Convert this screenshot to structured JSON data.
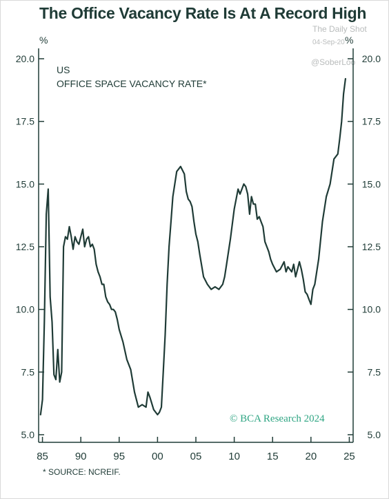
{
  "title": "The Office Vacancy Rate Is At A Record High",
  "watermark": {
    "line1": "The Daily Shot",
    "line2": "04-Sep-20",
    "line3": "@SoberLoo"
  },
  "unit_left": "%",
  "unit_right": "%",
  "subtitle_1": "US",
  "subtitle_2": "OFFICE SPACE VACANCY RATE*",
  "credit": "© BCA Research 2024",
  "source_note": "* SOURCE: NCREIF.",
  "colors": {
    "line": "#1f3b36",
    "text": "#1f3b36",
    "credit": "#2fa583",
    "watermark": "#b9bcbc"
  },
  "chart_data": {
    "type": "line",
    "title": "OFFICE SPACE VACANCY RATE*",
    "xlabel": "",
    "ylabel": "%",
    "xlim": [
      1984.5,
      2025.5
    ],
    "ylim": [
      5.0,
      20.0
    ],
    "grid": false,
    "legend": "none",
    "y_axes": "left and right",
    "x_ticks": [
      1985,
      1990,
      1995,
      2000,
      2005,
      2010,
      2015,
      2020,
      2025
    ],
    "x_tick_labels": [
      "85",
      "90",
      "95",
      "00",
      "05",
      "10",
      "15",
      "20",
      "25"
    ],
    "y_ticks": [
      5.0,
      7.5,
      10.0,
      12.5,
      15.0,
      17.5,
      20.0
    ],
    "y_tick_labels": [
      "5.0",
      "7.5",
      "10.0",
      "12.5",
      "15.0",
      "17.5",
      "20.0"
    ],
    "series": [
      {
        "x": [
          1984.75,
          1985.0,
          1985.25,
          1985.5,
          1985.75,
          1986.0,
          1986.25,
          1986.5,
          1986.75,
          1987.0,
          1987.25,
          1987.5,
          1987.75,
          1988.0,
          1988.25,
          1988.5,
          1988.75,
          1989.0,
          1989.25,
          1989.5,
          1989.75,
          1990.0,
          1990.25,
          1990.5,
          1990.75,
          1991.0,
          1991.25,
          1991.5,
          1991.75,
          1992.0,
          1992.25,
          1992.5,
          1992.75,
          1993.0,
          1993.25,
          1993.5,
          1993.75,
          1994.0,
          1994.25,
          1994.5,
          1994.75,
          1995.0,
          1995.5,
          1996.0,
          1996.5,
          1997.0,
          1997.25,
          1997.5,
          1998.0,
          1998.5,
          1998.75,
          1999.0,
          1999.5,
          2000.0,
          2000.25,
          2000.5,
          2000.75,
          2001.0,
          2001.25,
          2001.5,
          2001.75,
          2002.0,
          2002.5,
          2003.0,
          2003.5,
          2003.75,
          2004.0,
          2004.25,
          2004.5,
          2004.75,
          2005.0,
          2005.25,
          2005.5,
          2006.0,
          2006.5,
          2007.0,
          2007.5,
          2008.0,
          2008.5,
          2008.75,
          2009.0,
          2009.5,
          2010.0,
          2010.5,
          2010.75,
          2011.0,
          2011.25,
          2011.5,
          2011.75,
          2012.0,
          2012.25,
          2012.5,
          2012.75,
          2013.0,
          2013.25,
          2013.5,
          2013.75,
          2014.0,
          2014.25,
          2014.5,
          2014.75,
          2015.0,
          2015.5,
          2016.0,
          2016.5,
          2016.75,
          2017.0,
          2017.25,
          2017.5,
          2017.75,
          2018.0,
          2018.25,
          2018.5,
          2018.75,
          2019.0,
          2019.25,
          2019.5,
          2019.75,
          2020.0,
          2020.25,
          2020.5,
          2021.0,
          2021.5,
          2022.0,
          2022.5,
          2023.0,
          2023.5,
          2023.75,
          2024.0,
          2024.25,
          2024.5
        ],
        "y": [
          5.8,
          6.4,
          9.5,
          13.8,
          14.8,
          10.5,
          9.5,
          7.4,
          7.2,
          8.4,
          7.1,
          7.5,
          12.5,
          12.9,
          12.8,
          13.3,
          12.9,
          12.4,
          12.9,
          12.7,
          12.6,
          12.9,
          13.2,
          12.5,
          12.8,
          12.9,
          12.5,
          12.6,
          12.4,
          11.8,
          11.5,
          11.3,
          11.0,
          11.0,
          10.5,
          10.3,
          10.2,
          10.0,
          10.0,
          9.9,
          9.6,
          9.2,
          8.7,
          8.0,
          7.6,
          6.7,
          6.4,
          6.1,
          6.2,
          6.1,
          6.7,
          6.5,
          6.0,
          5.8,
          5.9,
          6.1,
          7.5,
          9.0,
          11.0,
          12.5,
          13.5,
          14.5,
          15.5,
          15.7,
          15.4,
          14.7,
          14.4,
          14.3,
          14.1,
          13.5,
          13.0,
          12.7,
          12.2,
          11.3,
          11.0,
          10.8,
          10.9,
          10.8,
          11.0,
          11.3,
          11.8,
          12.8,
          14.0,
          14.8,
          14.6,
          14.8,
          15.0,
          14.9,
          14.6,
          13.8,
          14.5,
          14.2,
          14.2,
          13.6,
          13.7,
          13.5,
          13.3,
          12.7,
          12.5,
          12.3,
          12.0,
          11.8,
          11.5,
          11.6,
          11.9,
          11.5,
          11.7,
          11.6,
          11.5,
          11.8,
          11.3,
          11.6,
          11.9,
          11.6,
          11.2,
          10.7,
          10.6,
          10.4,
          10.2,
          10.8,
          11.0,
          12.0,
          13.5,
          14.5,
          15.0,
          16.0,
          16.2,
          16.8,
          17.5,
          18.6,
          19.2
        ]
      }
    ]
  }
}
